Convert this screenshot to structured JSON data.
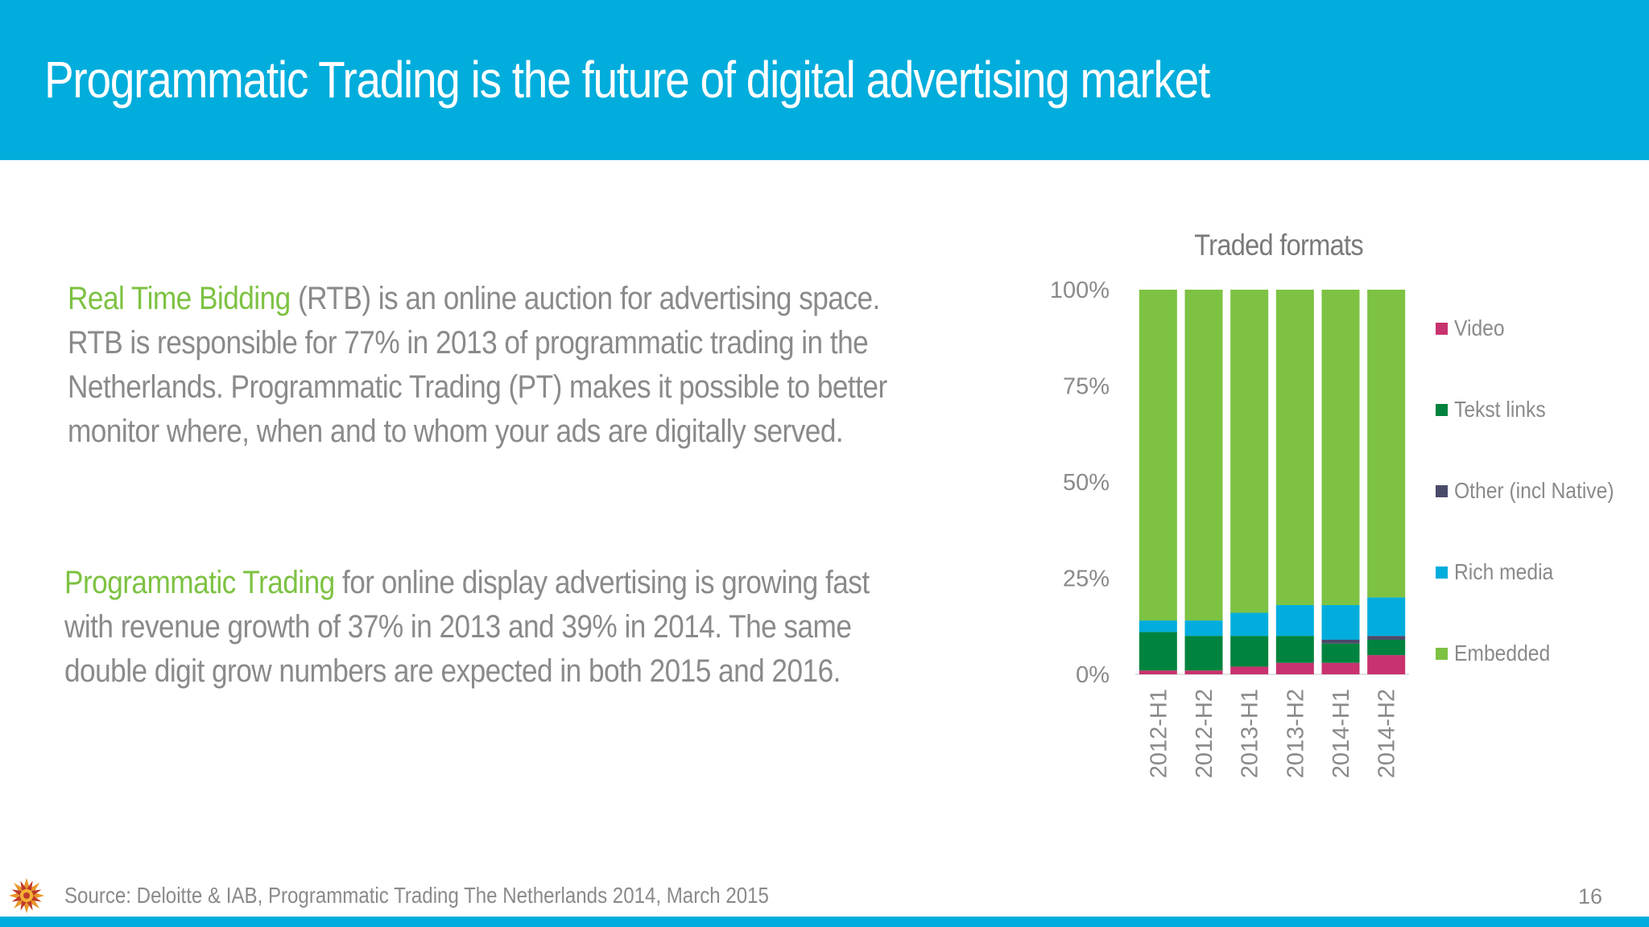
{
  "slide": {
    "title": "Programmatic Trading is the future of digital advertising market",
    "para1": {
      "highlight": "Real Time Bidding",
      "line1_rest": " (RTB) is an online auction for advertising space.",
      "line2": "RTB is responsible for 77% in 2013 of programmatic trading in the",
      "line3": "Netherlands. Programmatic Trading (PT) makes it possible to better",
      "line4": "monitor where, when and to whom your ads are digitally served."
    },
    "para2": {
      "highlight": "Programmatic Trading",
      "line1_rest": " for online display advertising is growing fast",
      "line2": "with revenue growth of 37% in 2013 and 39% in 2014. The same",
      "line3": "double digit grow  numbers are expected in both 2015 and 2016."
    },
    "source": "Source: Deloitte & IAB, Programmatic Trading The Netherlands 2014, March 2015",
    "page_number": "16",
    "colors": {
      "header": "#00ADDC",
      "accent_green": "#7DC242",
      "body_text": "#8A8A8A"
    },
    "logo_icon": "sun-logo-icon"
  },
  "chart_data": {
    "type": "bar",
    "stacked": true,
    "percent": true,
    "title": "Traded formats",
    "xlabel": "",
    "ylabel": "",
    "ylim": [
      0,
      100
    ],
    "yticks": [
      "0%",
      "25%",
      "50%",
      "75%",
      "100%"
    ],
    "categories": [
      "2012-H1",
      "2012-H2",
      "2013-H1",
      "2013-H2",
      "2014-H1",
      "2014-H2"
    ],
    "series": [
      {
        "name": "Video",
        "color": "#C8326E",
        "values": [
          1,
          1,
          2,
          3,
          3,
          5
        ]
      },
      {
        "name": "Tekst links",
        "color": "#00833E",
        "values": [
          10,
          9,
          8,
          7,
          5,
          4
        ]
      },
      {
        "name": "Other (incl Native)",
        "color": "#4A4A6A",
        "values": [
          0,
          0,
          0,
          0,
          1,
          1
        ]
      },
      {
        "name": "Rich media",
        "color": "#00ADDC",
        "values": [
          3,
          4,
          6,
          8,
          9,
          10
        ]
      },
      {
        "name": "Embedded",
        "color": "#7DC242",
        "values": [
          86,
          86,
          84,
          82,
          82,
          80
        ]
      }
    ],
    "legend_position": "right",
    "grid": false
  }
}
